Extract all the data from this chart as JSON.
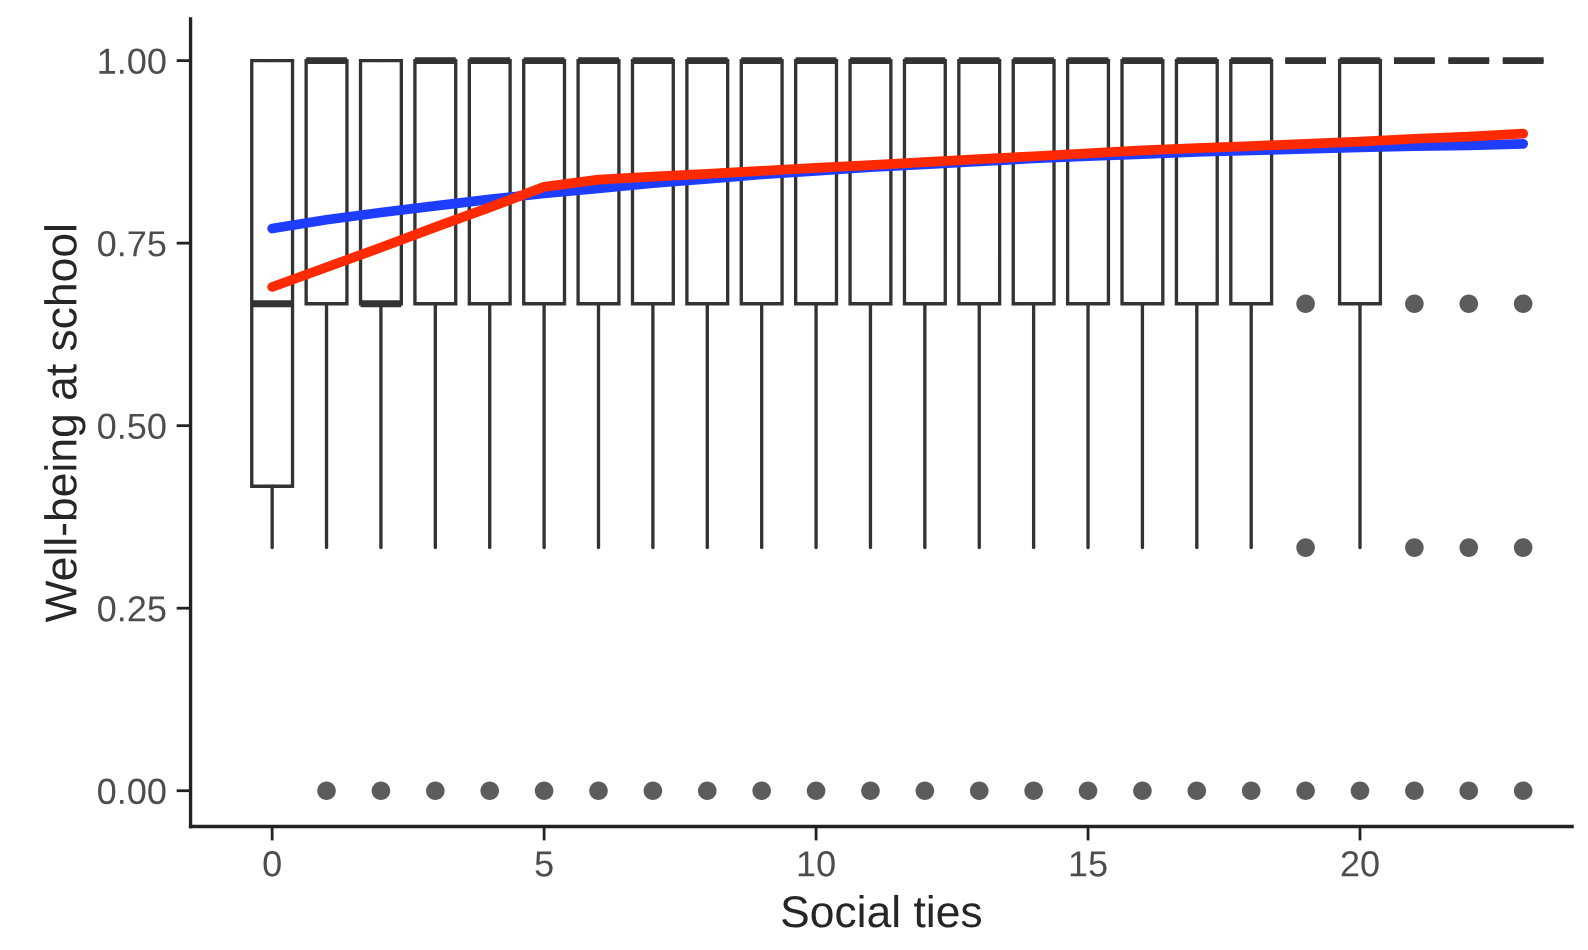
{
  "chart_data": {
    "type": "box",
    "xlabel": "Social ties",
    "ylabel": "Well-being at school",
    "categories": [
      "0",
      null,
      null,
      null,
      null,
      "5",
      null,
      null,
      null,
      null,
      "10",
      null,
      null,
      null,
      null,
      "15",
      null,
      null,
      null,
      null,
      "20",
      null,
      null,
      null
    ],
    "boxes": [
      {
        "low": 0.333,
        "q1": 0.417,
        "median": 0.667,
        "q3": 1,
        "high": 1
      },
      {
        "low": 0.333,
        "q1": 0.667,
        "median": 1,
        "q3": 1,
        "high": 1,
        "outliers": [
          0
        ]
      },
      {
        "low": 0.333,
        "q1": 0.667,
        "median": 0.667,
        "q3": 1,
        "high": 1,
        "outliers": [
          0
        ]
      },
      {
        "low": 0.333,
        "q1": 0.667,
        "median": 1,
        "q3": 1,
        "high": 1,
        "outliers": [
          0
        ]
      },
      {
        "low": 0.333,
        "q1": 0.667,
        "median": 1,
        "q3": 1,
        "high": 1,
        "outliers": [
          0
        ]
      },
      {
        "low": 0.333,
        "q1": 0.667,
        "median": 1,
        "q3": 1,
        "high": 1,
        "outliers": [
          0
        ]
      },
      {
        "low": 0.333,
        "q1": 0.667,
        "median": 1,
        "q3": 1,
        "high": 1,
        "outliers": [
          0
        ]
      },
      {
        "low": 0.333,
        "q1": 0.667,
        "median": 1,
        "q3": 1,
        "high": 1,
        "outliers": [
          0
        ]
      },
      {
        "low": 0.333,
        "q1": 0.667,
        "median": 1,
        "q3": 1,
        "high": 1,
        "outliers": [
          0
        ]
      },
      {
        "low": 0.333,
        "q1": 0.667,
        "median": 1,
        "q3": 1,
        "high": 1,
        "outliers": [
          0
        ]
      },
      {
        "low": 0.333,
        "q1": 0.667,
        "median": 1,
        "q3": 1,
        "high": 1,
        "outliers": [
          0
        ]
      },
      {
        "low": 0.333,
        "q1": 0.667,
        "median": 1,
        "q3": 1,
        "high": 1,
        "outliers": [
          0
        ]
      },
      {
        "low": 0.333,
        "q1": 0.667,
        "median": 1,
        "q3": 1,
        "high": 1,
        "outliers": [
          0
        ]
      },
      {
        "low": 0.333,
        "q1": 0.667,
        "median": 1,
        "q3": 1,
        "high": 1,
        "outliers": [
          0
        ]
      },
      {
        "low": 0.333,
        "q1": 0.667,
        "median": 1,
        "q3": 1,
        "high": 1,
        "outliers": [
          0
        ]
      },
      {
        "low": 0.333,
        "q1": 0.667,
        "median": 1,
        "q3": 1,
        "high": 1,
        "outliers": [
          0
        ]
      },
      {
        "low": 0.333,
        "q1": 0.667,
        "median": 1,
        "q3": 1,
        "high": 1,
        "outliers": [
          0
        ]
      },
      {
        "low": 0.333,
        "q1": 0.667,
        "median": 1,
        "q3": 1,
        "high": 1,
        "outliers": [
          0
        ]
      },
      {
        "low": 0.333,
        "q1": 0.667,
        "median": 1,
        "q3": 1,
        "high": 1,
        "outliers": [
          0
        ]
      },
      {
        "low": 1,
        "q1": 1,
        "median": 1,
        "q3": 1,
        "high": 1,
        "outliers": [
          0.667,
          0.333,
          0
        ]
      },
      {
        "low": 0.333,
        "q1": 0.667,
        "median": 1,
        "q3": 1,
        "high": 1,
        "outliers": [
          0
        ]
      },
      {
        "low": 1,
        "q1": 1,
        "median": 1,
        "q3": 1,
        "high": 1,
        "outliers": [
          0.667,
          0.333,
          0
        ]
      },
      {
        "low": 1,
        "q1": 1,
        "median": 1,
        "q3": 1,
        "high": 1,
        "outliers": [
          0.667,
          0.333,
          0
        ]
      },
      {
        "low": 1,
        "q1": 1,
        "median": 1,
        "q3": 1,
        "high": 1,
        "outliers": [
          0.667,
          0.333,
          0
        ]
      }
    ],
    "color": "#333333",
    "series": [
      {
        "type": "line",
        "color": "#1f3dff",
        "values": [
          0.77,
          0.782,
          0.792,
          0.801,
          0.81,
          0.818,
          0.825,
          0.832,
          0.838,
          0.844,
          0.849,
          0.854,
          0.858,
          0.862,
          0.866,
          0.869,
          0.872,
          0.875,
          0.877,
          0.879,
          0.881,
          0.883,
          0.884,
          0.886
        ]
      },
      {
        "type": "line",
        "color": "#ff2a00",
        "values": [
          0.69,
          0.717,
          0.744,
          0.772,
          0.799,
          0.827,
          0.837,
          0.841,
          0.845,
          0.849,
          0.853,
          0.857,
          0.861,
          0.865,
          0.869,
          0.873,
          0.877,
          0.88,
          0.883,
          0.886,
          0.889,
          0.893,
          0.896,
          0.9
        ]
      }
    ],
    "ylim": [
      -0.049,
      1.057
    ],
    "yticks": [
      {
        "value": 0,
        "label": "0.00"
      },
      {
        "value": 0.25,
        "label": "0.25"
      },
      {
        "value": 0.5,
        "label": "0.50"
      },
      {
        "value": 0.75,
        "label": "0.75"
      },
      {
        "value": 1,
        "label": "1.00"
      }
    ]
  }
}
